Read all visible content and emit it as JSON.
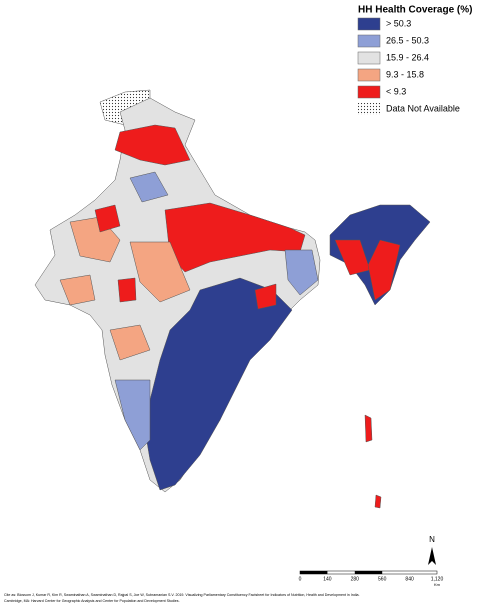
{
  "legend": {
    "title": "HH Health Coverage (%)",
    "items": [
      {
        "label": "> 50.3",
        "color": "#2e3f8f"
      },
      {
        "label": "26.5 - 50.3",
        "color": "#8e9fd6"
      },
      {
        "label": "15.9 - 26.4",
        "color": "#e2e2e2"
      },
      {
        "label": "9.3 - 15.8",
        "color": "#f4a582"
      },
      {
        "label": "< 9.3",
        "color": "#ee1c1c"
      },
      {
        "label": "Data Not Available",
        "color": "dotted"
      }
    ]
  },
  "north_arrow": "N",
  "scale_bar": {
    "labels": [
      "0",
      "140",
      "280",
      "560",
      "840",
      "1,120"
    ],
    "unit": "Km"
  },
  "citation": {
    "lines": [
      "Cite as: Blossom J, Kumar R, Kim R, Swaminathan A, Swaminathan D, Rajpal S, Joe W, Subramanian S.V. 2019. Visualizing Parliamentary Constituency Factsheet for Indicators of Nutrition, Health and Development in India.",
      "Cambridge, MA: Harvard Center for Geographic Analysis and Center for Population and Development Studies."
    ]
  }
}
